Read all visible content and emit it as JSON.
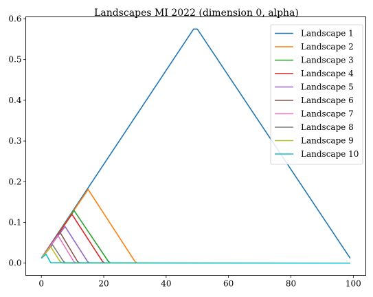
{
  "chart_data": {
    "type": "line",
    "title": "Landscapes MI 2022 (dimension 0, alpha)",
    "xlabel": "",
    "ylabel": "",
    "xlim": [
      -5,
      104
    ],
    "ylim": [
      -0.03,
      0.605
    ],
    "x_ticks": [
      0,
      20,
      40,
      60,
      80,
      100
    ],
    "x_tick_labels": [
      "0",
      "20",
      "40",
      "60",
      "80",
      "100"
    ],
    "y_ticks": [
      0.0,
      0.1,
      0.2,
      0.3,
      0.4,
      0.5,
      0.6
    ],
    "y_tick_labels": [
      "0.0",
      "0.1",
      "0.2",
      "0.3",
      "0.4",
      "0.5",
      "0.6"
    ],
    "grid": false,
    "legend_position": "top-right",
    "series": [
      {
        "name": "Landscape 1",
        "color": "#1f77b4",
        "points": [
          [
            0,
            0.012
          ],
          [
            48.8,
            0.575
          ],
          [
            50,
            0.575
          ],
          [
            99,
            0.012
          ]
        ]
      },
      {
        "name": "Landscape 2",
        "color": "#ff7f0e",
        "points": [
          [
            0,
            0.012
          ],
          [
            15,
            0.181
          ],
          [
            30,
            0.004
          ],
          [
            30.8,
            0.0
          ],
          [
            99,
            0.0
          ]
        ]
      },
      {
        "name": "Landscape 3",
        "color": "#2ca02c",
        "points": [
          [
            0,
            0.012
          ],
          [
            10.5,
            0.129
          ],
          [
            21.5,
            0.004
          ],
          [
            22.3,
            0.0
          ],
          [
            99,
            0.0
          ]
        ]
      },
      {
        "name": "Landscape 4",
        "color": "#d62728",
        "points": [
          [
            0,
            0.012
          ],
          [
            9.8,
            0.12
          ],
          [
            19.6,
            0.004
          ],
          [
            20.4,
            0.0
          ],
          [
            99,
            0.0
          ]
        ]
      },
      {
        "name": "Landscape 5",
        "color": "#9467bd",
        "points": [
          [
            0,
            0.012
          ],
          [
            7.6,
            0.09
          ],
          [
            14.8,
            0.004
          ],
          [
            15.6,
            0.0
          ],
          [
            99,
            0.0
          ]
        ]
      },
      {
        "name": "Landscape 6",
        "color": "#8c564b",
        "points": [
          [
            0,
            0.012
          ],
          [
            5.8,
            0.078
          ],
          [
            11.6,
            0.004
          ],
          [
            12.4,
            0.0
          ],
          [
            99,
            0.0
          ]
        ]
      },
      {
        "name": "Landscape 7",
        "color": "#e377c2",
        "points": [
          [
            0,
            0.012
          ],
          [
            5.3,
            0.068
          ],
          [
            10.4,
            0.004
          ],
          [
            11.2,
            0.0
          ],
          [
            99,
            0.0
          ]
        ]
      },
      {
        "name": "Landscape 8",
        "color": "#7f7f7f",
        "points": [
          [
            0,
            0.012
          ],
          [
            3.6,
            0.045
          ],
          [
            7.1,
            0.004
          ],
          [
            7.9,
            0.0
          ],
          [
            99,
            0.0
          ]
        ]
      },
      {
        "name": "Landscape 9",
        "color": "#bcbd22",
        "points": [
          [
            0,
            0.012
          ],
          [
            3.0,
            0.04
          ],
          [
            6.0,
            0.004
          ],
          [
            6.8,
            0.0
          ],
          [
            99,
            0.0
          ]
        ]
      },
      {
        "name": "Landscape 10",
        "color": "#17becf",
        "points": [
          [
            0,
            0.012
          ],
          [
            1.5,
            0.022
          ],
          [
            3.0,
            0.001
          ],
          [
            99,
            0.0
          ]
        ]
      }
    ]
  }
}
